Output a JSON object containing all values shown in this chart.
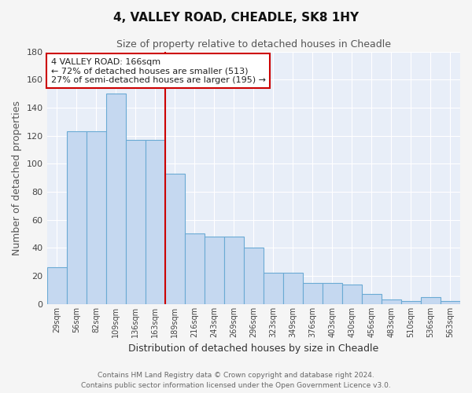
{
  "title": "4, VALLEY ROAD, CHEADLE, SK8 1HY",
  "subtitle": "Size of property relative to detached houses in Cheadle",
  "xlabel": "Distribution of detached houses by size in Cheadle",
  "ylabel": "Number of detached properties",
  "categories": [
    "29sqm",
    "56sqm",
    "82sqm",
    "109sqm",
    "136sqm",
    "163sqm",
    "189sqm",
    "216sqm",
    "243sqm",
    "269sqm",
    "296sqm",
    "323sqm",
    "349sqm",
    "376sqm",
    "403sqm",
    "430sqm",
    "456sqm",
    "483sqm",
    "510sqm",
    "536sqm",
    "563sqm"
  ],
  "values": [
    26,
    123,
    123,
    150,
    117,
    117,
    93,
    50,
    48,
    48,
    40,
    22,
    22,
    15,
    15,
    14,
    7,
    3,
    2,
    5,
    2
  ],
  "bar_color": "#c5d8f0",
  "bar_edge_color": "#6aaad4",
  "vline_x_idx": 5,
  "vline_color": "#cc0000",
  "annotation_text": "4 VALLEY ROAD: 166sqm\n← 72% of detached houses are smaller (513)\n27% of semi-detached houses are larger (195) →",
  "annotation_box_color": "#ffffff",
  "annotation_box_edge": "#cc0000",
  "ylim": [
    0,
    180
  ],
  "yticks": [
    0,
    20,
    40,
    60,
    80,
    100,
    120,
    140,
    160,
    180
  ],
  "bg_color": "#e8eef8",
  "grid_color": "#ffffff",
  "footer_line1": "Contains HM Land Registry data © Crown copyright and database right 2024.",
  "footer_line2": "Contains public sector information licensed under the Open Government Licence v3.0."
}
